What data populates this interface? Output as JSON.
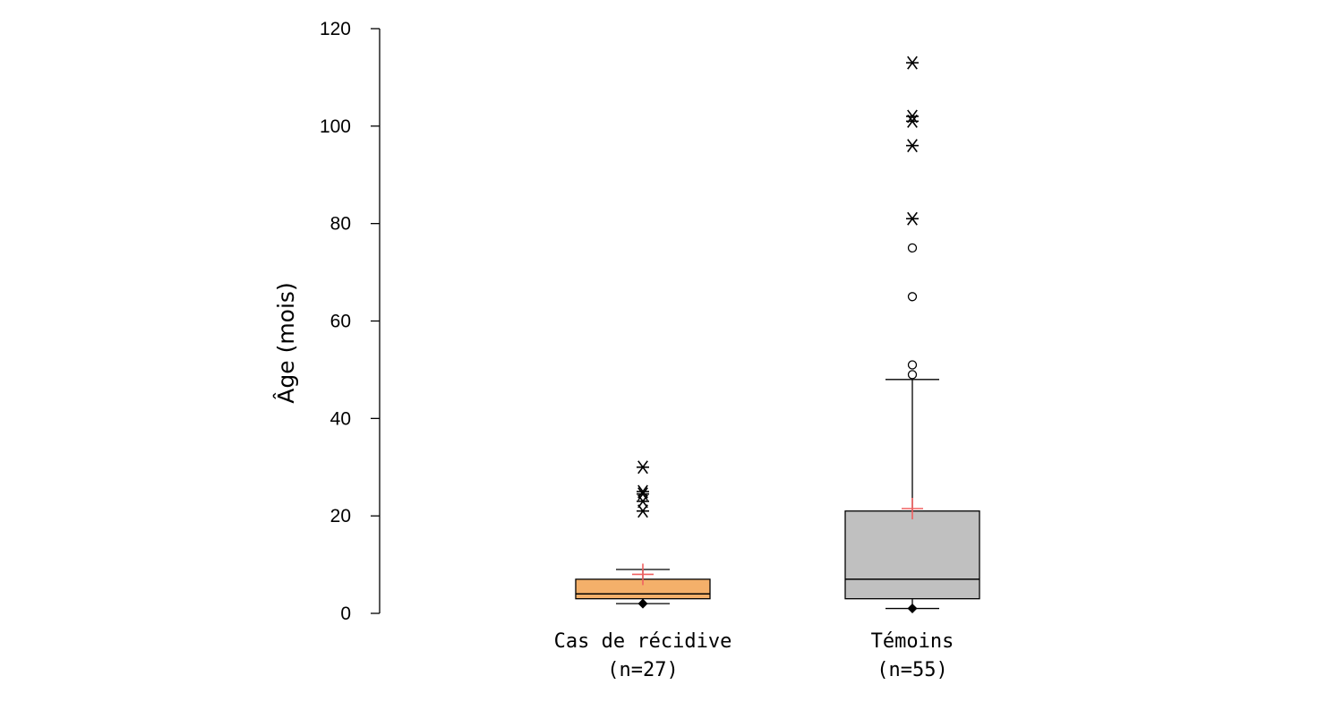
{
  "chart_data": {
    "type": "box",
    "ylabel": "Âge (mois)",
    "ylim": [
      0,
      120
    ],
    "yticks": [
      0,
      20,
      40,
      60,
      80,
      100,
      120
    ],
    "grid": false,
    "categories": [
      {
        "label_line1": "Cas de récidive",
        "label_line2": "(n=27)",
        "fill": "#f4b06a",
        "min": 2,
        "q1": 3,
        "median": 4,
        "q3": 7,
        "whisker_high": 9,
        "mean": 8,
        "outliers_circle": [],
        "outliers_star": [
          21,
          23,
          24.5,
          25,
          30
        ]
      },
      {
        "label_line1": "Témoins",
        "label_line2": "(n=55)",
        "fill": "#c0c0c0",
        "min": 1,
        "q1": 3,
        "median": 7,
        "q3": 21,
        "whisker_high": 48,
        "mean": 21.5,
        "outliers_circle": [
          49,
          51,
          65,
          75
        ],
        "outliers_star": [
          81,
          96,
          101,
          102,
          113
        ]
      }
    ],
    "colors": {
      "mean_marker": "#f06060",
      "stroke": "#000000"
    }
  }
}
